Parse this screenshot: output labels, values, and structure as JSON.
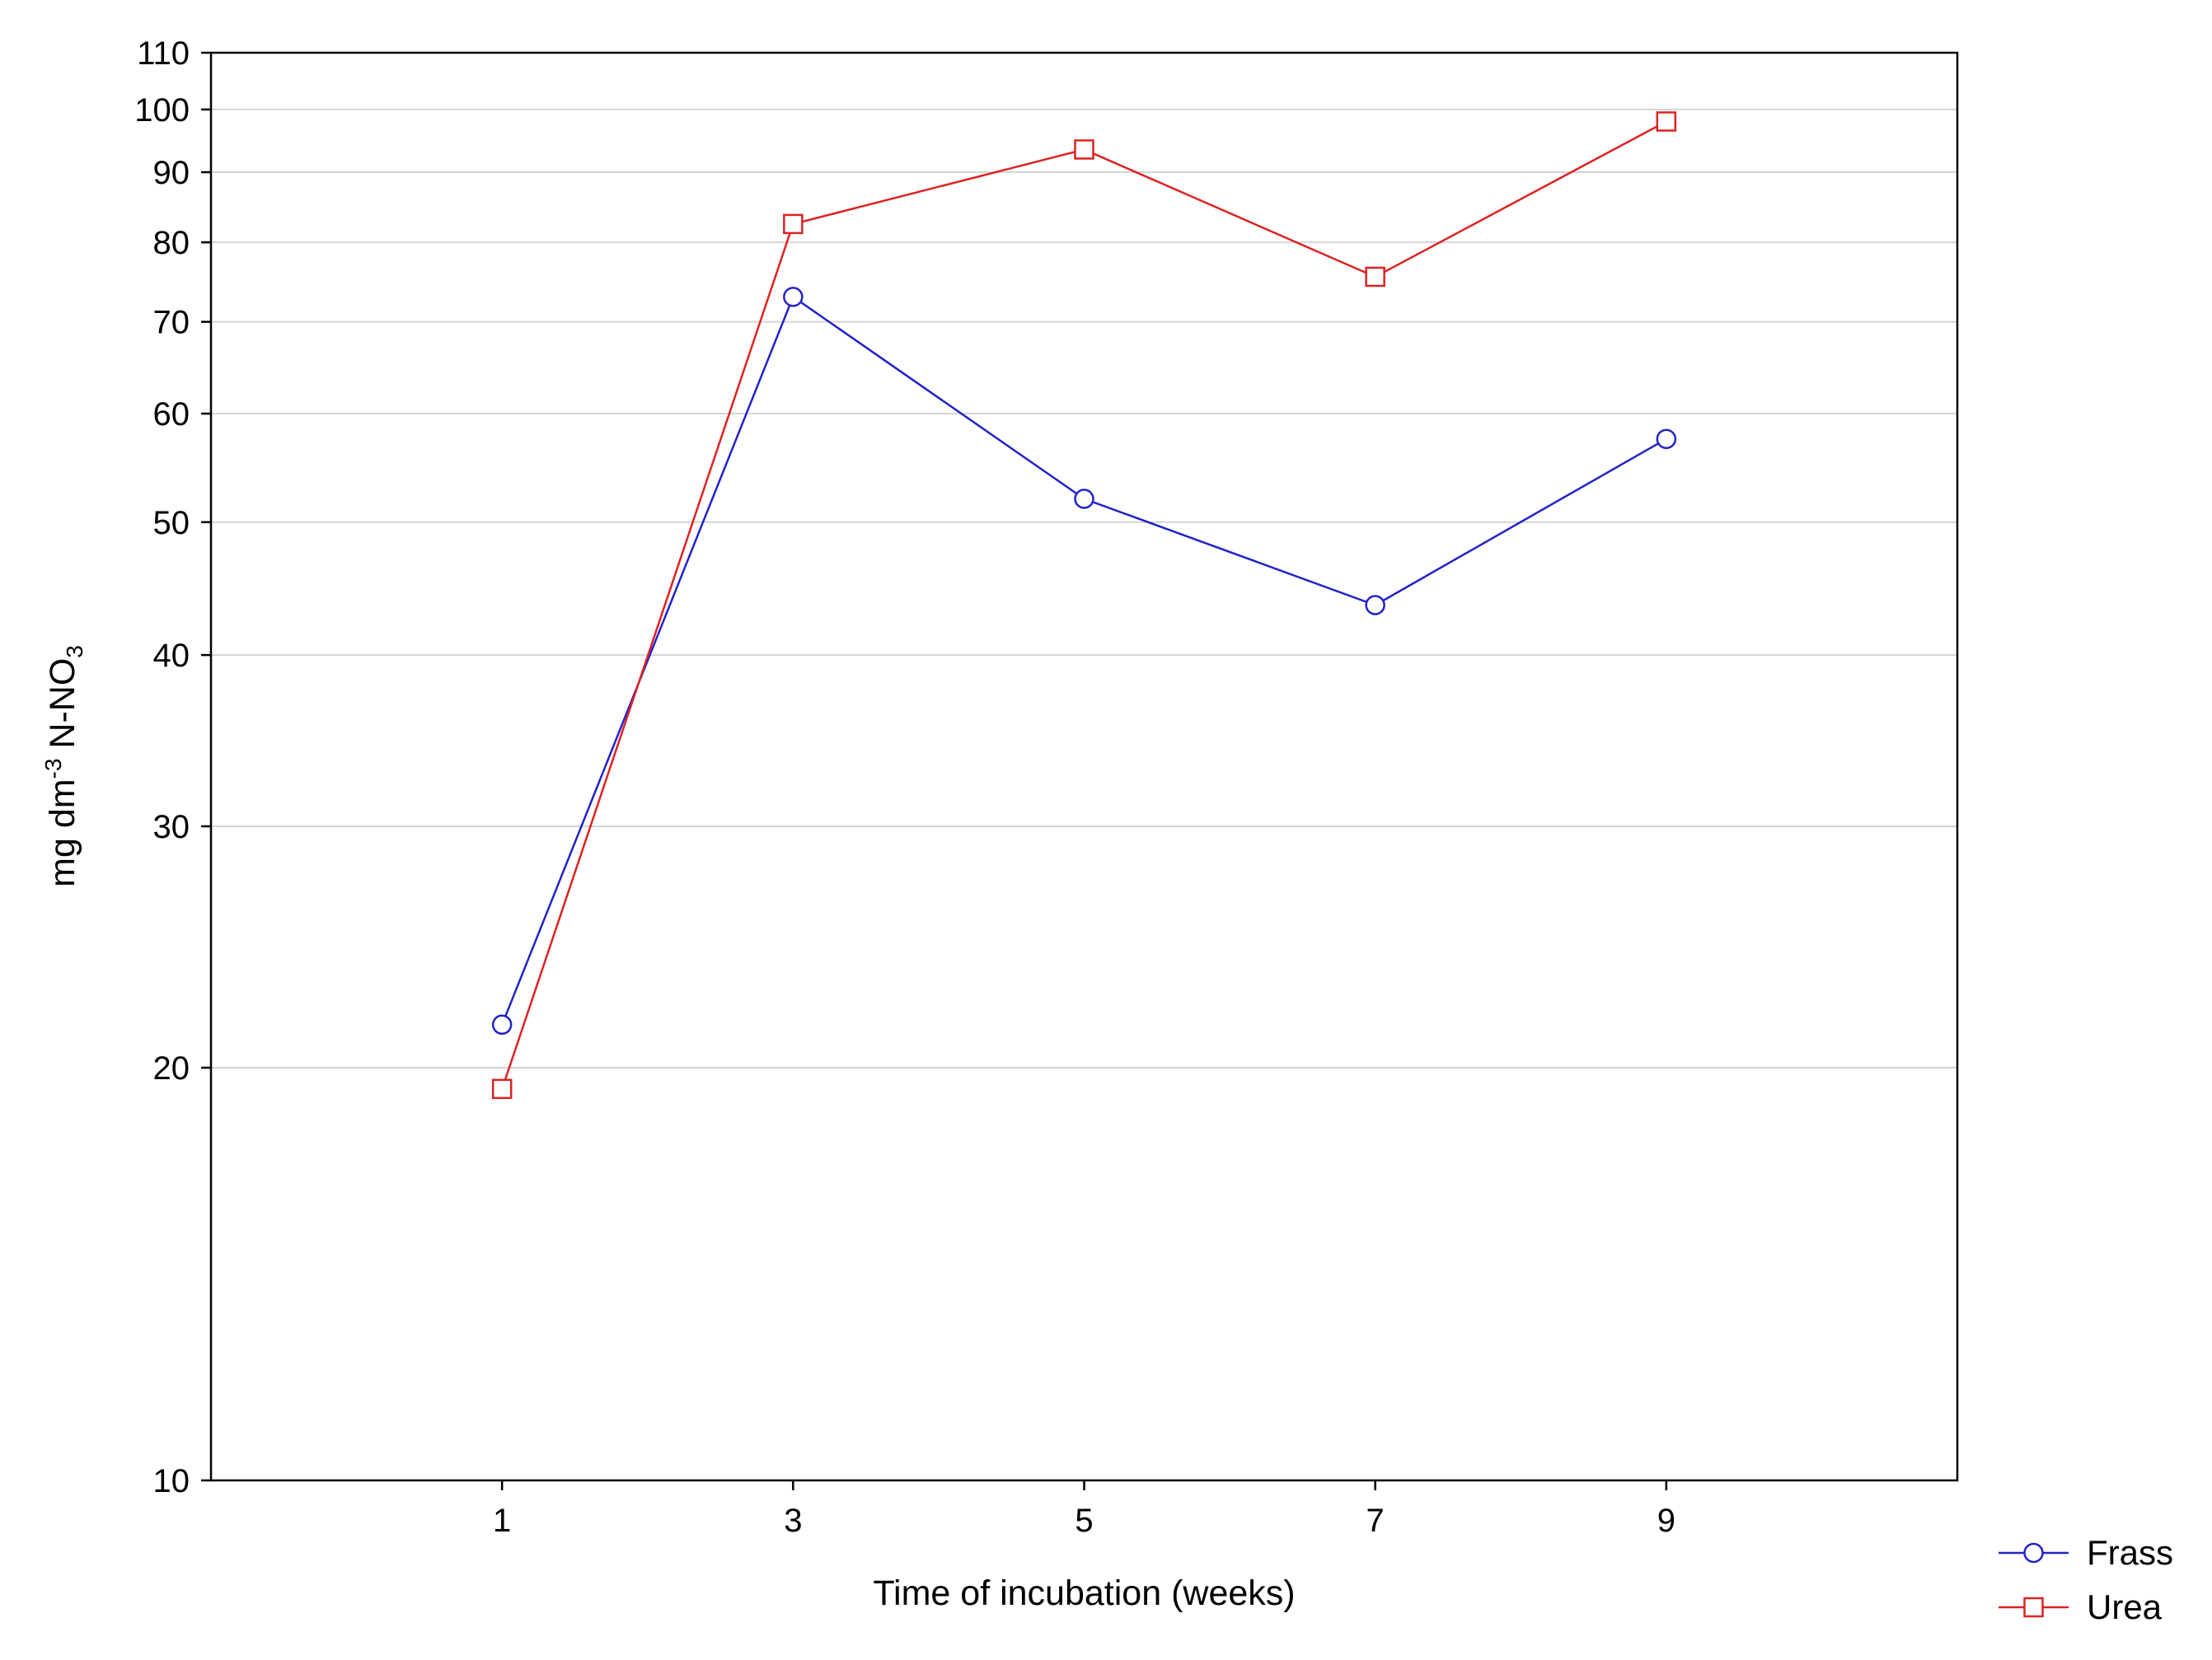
{
  "chart_data": {
    "type": "line",
    "title": "",
    "xlabel": "Time of incubation (weeks)",
    "ylabel": {
      "text": "mg dm",
      "superscript": "-3",
      "text2": " N-NO",
      "subscript": "3"
    },
    "x": [
      1,
      3,
      5,
      7,
      9
    ],
    "x_ticks": [
      "1",
      "3",
      "5",
      "7",
      "9"
    ],
    "xlim": [
      -1,
      11
    ],
    "y_scale": "log",
    "ylim": [
      10,
      110
    ],
    "y_ticks": [
      "10",
      "20",
      "30",
      "40",
      "50",
      "60",
      "70",
      "80",
      "90",
      "100",
      "110"
    ],
    "y_tick_values": [
      10,
      20,
      30,
      40,
      50,
      60,
      70,
      80,
      90,
      100,
      110
    ],
    "grid": "horizontal",
    "legend_position": "bottom-right, outside plot",
    "series": [
      {
        "name": "Frass",
        "marker": "circle",
        "color": "#2222cc",
        "values": [
          21.5,
          73,
          52,
          43.5,
          57.5
        ]
      },
      {
        "name": "Urea",
        "marker": "square",
        "color": "#dd2222",
        "values": [
          19.3,
          82.5,
          93.5,
          75.5,
          98
        ]
      }
    ]
  }
}
